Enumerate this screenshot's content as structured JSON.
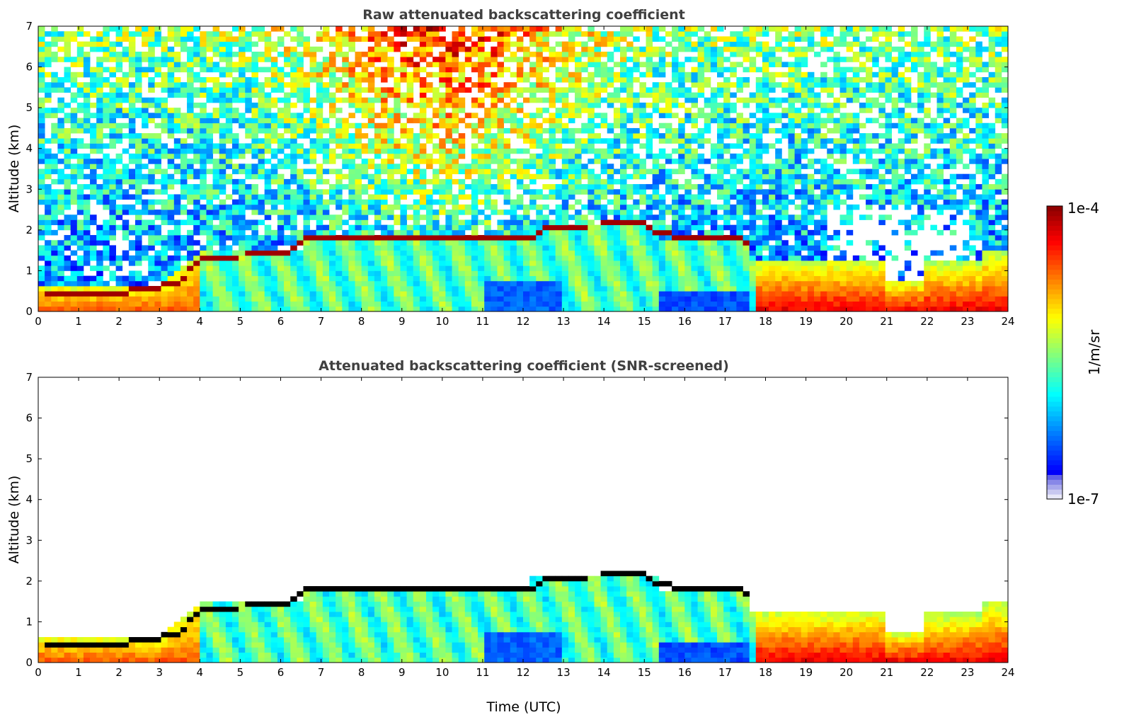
{
  "chart_data": [
    {
      "type": "heatmap",
      "title": "Raw attenuated backscattering coefficient",
      "xlabel": "",
      "ylabel": "Altitude (km)",
      "xlim": [
        0,
        24
      ],
      "ylim": [
        0,
        7
      ],
      "xticks": [
        0,
        1,
        2,
        3,
        4,
        5,
        6,
        7,
        8,
        9,
        10,
        11,
        12,
        13,
        14,
        15,
        16,
        17,
        18,
        19,
        20,
        21,
        22,
        23,
        24
      ],
      "yticks": [
        0,
        1,
        2,
        3,
        4,
        5,
        6,
        7
      ],
      "screened": false,
      "features": {
        "cloud_base_km": [
          [
            0,
            0.5
          ],
          [
            2,
            0.45
          ],
          [
            3.5,
            0.7
          ],
          [
            4,
            1.35
          ],
          [
            6,
            1.4
          ],
          [
            6.7,
            1.8
          ],
          [
            12.2,
            1.8
          ],
          [
            12.6,
            2.1
          ],
          [
            15,
            2.15
          ],
          [
            15.3,
            1.9
          ],
          [
            17.5,
            1.75
          ],
          [
            18,
            0.0
          ]
        ],
        "upper_noise_max_time_utc": 10.5
      }
    },
    {
      "type": "heatmap",
      "title": "Attenuated backscattering coefficient (SNR-screened)",
      "xlabel": "Time (UTC)",
      "ylabel": "Altitude (km)",
      "xlim": [
        0,
        24
      ],
      "ylim": [
        0,
        7
      ],
      "xticks": [
        0,
        1,
        2,
        3,
        4,
        5,
        6,
        7,
        8,
        9,
        10,
        11,
        12,
        13,
        14,
        15,
        16,
        17,
        18,
        19,
        20,
        21,
        22,
        23,
        24
      ],
      "yticks": [
        0,
        1,
        2,
        3,
        4,
        5,
        6,
        7
      ],
      "screened": true
    }
  ],
  "colorbar": {
    "label": "1/m/sr",
    "max_label": "1e-4",
    "min_label": "1e-7",
    "min": 1e-07,
    "max": 0.0001,
    "scale": "log",
    "colormap": "jet"
  }
}
